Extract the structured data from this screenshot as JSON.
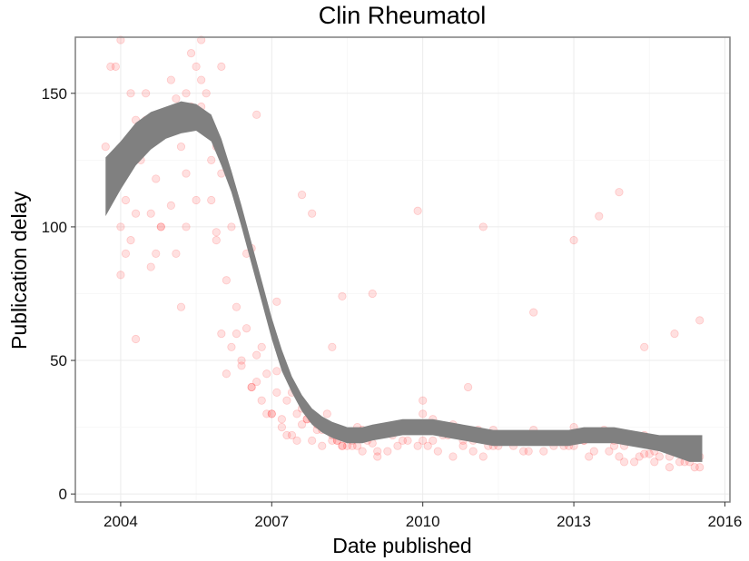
{
  "chart_data": {
    "type": "scatter",
    "title": "Clin Rheumatol",
    "xlabel": "Date published",
    "ylabel": "Publication delay",
    "xlim": [
      2003.1,
      2016.1
    ],
    "ylim": [
      -3,
      171
    ],
    "x_ticks": [
      2004,
      2007,
      2010,
      2013,
      2016
    ],
    "y_ticks": [
      0,
      50,
      100,
      150
    ],
    "x_tick_labels": [
      "2004",
      "2007",
      "2010",
      "2013",
      "2016"
    ],
    "y_tick_labels": [
      "0",
      "50",
      "100",
      "150"
    ],
    "grid": true,
    "point_color": "#ff0000",
    "point_alpha": 0.12,
    "smooth_color": "#808080",
    "series": [
      {
        "kind": "points",
        "x": [
          2003.7,
          2003.8,
          2003.9,
          2004.0,
          2004.1,
          2004.2,
          2004.3,
          2004.4,
          2004.5,
          2004.6,
          2004.7,
          2004.8,
          2004.9,
          2005.0,
          2005.1,
          2005.2,
          2005.3,
          2005.4,
          2005.5,
          2005.6,
          2005.7,
          2005.8,
          2005.9,
          2006.0,
          2006.1,
          2006.2,
          2006.3,
          2006.4,
          2006.5,
          2006.6,
          2006.7,
          2006.8,
          2006.9,
          2007.0,
          2007.1,
          2007.2,
          2007.3,
          2007.4,
          2007.5,
          2007.6,
          2007.7,
          2007.8,
          2007.9,
          2008.0,
          2008.1,
          2008.2,
          2008.3,
          2008.4,
          2008.5,
          2008.6,
          2008.7,
          2008.8,
          2008.9,
          2009.0,
          2009.2,
          2009.4,
          2009.6,
          2009.8,
          2010.0,
          2010.2,
          2010.4,
          2010.6,
          2010.8,
          2011.0,
          2011.2,
          2011.4,
          2011.6,
          2011.8,
          2012.0,
          2012.2,
          2012.4,
          2012.6,
          2012.8,
          2013.0,
          2013.2,
          2013.4,
          2013.6,
          2013.8,
          2014.0,
          2014.2,
          2014.4,
          2014.6,
          2014.8,
          2015.0,
          2015.2,
          2015.4,
          2015.5,
          2003.8,
          2004.0,
          2004.2,
          2004.5,
          2004.8,
          2005.1,
          2005.4,
          2005.7,
          2006.0,
          2006.3,
          2006.6,
          2006.9,
          2007.2,
          2007.5,
          2007.8,
          2008.1,
          2008.4,
          2008.7,
          2009.0,
          2009.3,
          2009.6,
          2009.9,
          2010.2,
          2010.5,
          2010.8,
          2011.1,
          2011.4,
          2011.7,
          2012.0,
          2012.3,
          2012.6,
          2012.9,
          2013.2,
          2013.5,
          2013.8,
          2014.1,
          2014.4,
          2014.7,
          2015.0,
          2015.3,
          2003.9,
          2004.3,
          2004.7,
          2005.0,
          2005.3,
          2005.6,
          2005.9,
          2006.1,
          2006.4,
          2006.7,
          2007.0,
          2007.3,
          2007.6,
          2007.9,
          2008.2,
          2008.5,
          2008.8,
          2009.1,
          2009.5,
          2010.0,
          2010.3,
          2010.7,
          2011.2,
          2011.5,
          2012.1,
          2012.5,
          2013.0,
          2013.4,
          2013.9,
          2014.2,
          2014.5,
          2014.9,
          2015.1,
          2015.4,
          2004.1,
          2004.6,
          2005.2,
          2005.5,
          2005.8,
          2006.2,
          2006.5,
          2006.8,
          2007.1,
          2007.4,
          2007.7,
          2008.0,
          2008.3,
          2008.6,
          2009.1,
          2009.7,
          2010.1,
          2010.6,
          2011.0,
          2011.3,
          2011.9,
          2012.4,
          2012.8,
          2013.3,
          2013.7,
          2014.0,
          2014.3,
          2014.6,
          2014.9,
          2015.2,
          2015.5,
          2004.0,
          2005.0,
          2005.9,
          2006.6,
          2007.1,
          2007.6,
          2008.2,
          2009.9,
          2011.2,
          2013.0,
          2013.5,
          2013.9,
          2015.5,
          2004.3,
          2005.3,
          2005.6,
          2006.0,
          2006.7,
          2007.8,
          2008.4,
          2009.0,
          2010.0,
          2010.9,
          2012.2,
          2014.4,
          2015.0
        ],
        "y": [
          130,
          120,
          160,
          100,
          110,
          95,
          140,
          125,
          150,
          105,
          118,
          100,
          135,
          142,
          148,
          130,
          150,
          145,
          160,
          155,
          140,
          110,
          98,
          60,
          45,
          55,
          70,
          48,
          62,
          40,
          52,
          35,
          45,
          30,
          38,
          28,
          35,
          22,
          30,
          26,
          28,
          20,
          24,
          18,
          25,
          22,
          20,
          18,
          22,
          20,
          18,
          24,
          20,
          19,
          25,
          22,
          26,
          24,
          30,
          20,
          22,
          26,
          18,
          20,
          22,
          24,
          20,
          18,
          22,
          24,
          20,
          18,
          22,
          25,
          20,
          22,
          24,
          20,
          18,
          20,
          22,
          16,
          18,
          20,
          18,
          15,
          14,
          160,
          170,
          150,
          140,
          100,
          90,
          165,
          150,
          120,
          60,
          40,
          30,
          25,
          20,
          28,
          30,
          18,
          25,
          22,
          16,
          20,
          18,
          28,
          22,
          20,
          24,
          18,
          20,
          16,
          22,
          20,
          18,
          20,
          22,
          18,
          20,
          15,
          14,
          18,
          12,
          125,
          105,
          90,
          155,
          120,
          170,
          130,
          80,
          50,
          42,
          30,
          22,
          32,
          26,
          20,
          18,
          16,
          14,
          18,
          20,
          16,
          22,
          14,
          18,
          16,
          20,
          18,
          16,
          14,
          12,
          15,
          14,
          12,
          10,
          90,
          85,
          70,
          110,
          125,
          100,
          90,
          55,
          46,
          38,
          28,
          24,
          20,
          18,
          16,
          20,
          18,
          14,
          16,
          18,
          20,
          16,
          18,
          14,
          16,
          12,
          14,
          12,
          10,
          12,
          10,
          82,
          108,
          95,
          92,
          72,
          112,
          55,
          106,
          100,
          95,
          104,
          113,
          65,
          58,
          100,
          145,
          160,
          142,
          105,
          74,
          75,
          35,
          40,
          68,
          55,
          60
        ]
      },
      {
        "kind": "smooth",
        "name": "",
        "x": [
          2003.7,
          2004.0,
          2004.3,
          2004.6,
          2004.9,
          2005.2,
          2005.5,
          2005.8,
          2006.0,
          2006.2,
          2006.4,
          2006.6,
          2006.8,
          2007.0,
          2007.2,
          2007.4,
          2007.6,
          2007.8,
          2008.0,
          2008.2,
          2008.5,
          2008.8,
          2009.0,
          2009.3,
          2009.6,
          2009.9,
          2010.2,
          2010.5,
          2010.8,
          2011.1,
          2011.4,
          2011.7,
          2012.0,
          2012.3,
          2012.6,
          2012.9,
          2013.2,
          2013.5,
          2013.8,
          2014.1,
          2014.4,
          2014.7,
          2015.0,
          2015.3,
          2015.55
        ],
        "y": [
          115,
          123,
          131,
          136,
          139,
          141,
          141,
          137,
          128,
          117,
          104,
          90,
          76,
          62,
          50,
          41,
          34,
          29,
          26,
          24,
          22,
          22,
          23,
          24,
          25,
          25,
          25,
          24,
          23,
          22,
          21,
          21,
          21,
          21,
          21,
          21,
          22,
          22,
          22,
          21,
          20,
          19,
          18,
          17,
          17
        ],
        "band": [
          11,
          9,
          8,
          7,
          6,
          6,
          5,
          5,
          5,
          4,
          4,
          4,
          4,
          4,
          4,
          3,
          3,
          3,
          3,
          3,
          3,
          3,
          3,
          3,
          3,
          3,
          3,
          3,
          3,
          3,
          3,
          3,
          3,
          3,
          3,
          3,
          3,
          3,
          3,
          3,
          3,
          3,
          4,
          5,
          5
        ]
      }
    ]
  }
}
